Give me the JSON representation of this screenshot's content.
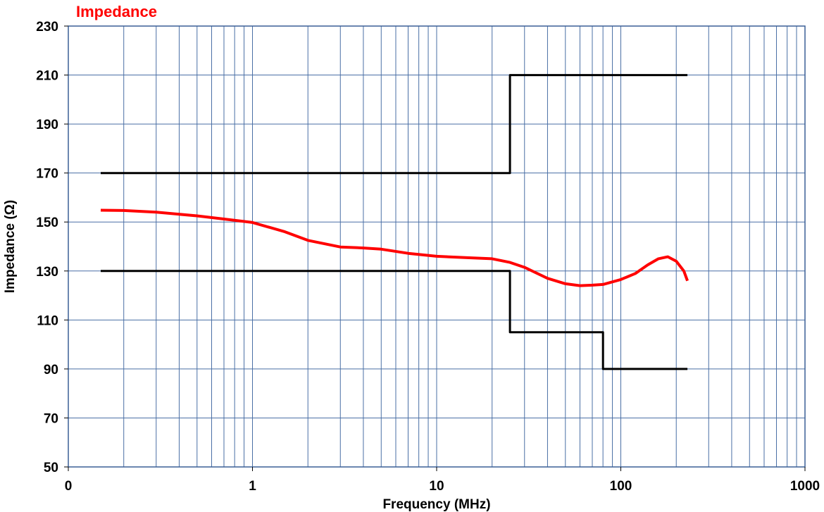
{
  "chart_data": {
    "type": "line",
    "title": "Impedance",
    "xlabel": "Frequency (MHz)",
    "ylabel": "Impedance (Ω)",
    "x_scale": "log",
    "xlim": [
      0.1,
      1000
    ],
    "ylim": [
      50,
      230
    ],
    "x_tick_labels": [
      "0",
      "1",
      "10",
      "100",
      "1000"
    ],
    "y_ticks": [
      50,
      70,
      90,
      110,
      130,
      150,
      170,
      190,
      210,
      230
    ],
    "y_tick_labels": [
      "50",
      "70",
      "90",
      "110",
      "130",
      "150",
      "170",
      "190",
      "210",
      "230"
    ],
    "grid": true,
    "colors": {
      "title": "#ff0000",
      "grid": "#4a6fa5",
      "limit_lines": "#000000",
      "measured": "#ff0000"
    },
    "series": [
      {
        "color": "#000000",
        "x": [
          0.15,
          25,
          25,
          230
        ],
        "y": [
          170,
          170,
          210,
          210
        ]
      },
      {
        "color": "#000000",
        "x": [
          0.15,
          25,
          25,
          80,
          80,
          230
        ],
        "y": [
          130,
          130,
          105,
          105,
          90,
          90
        ]
      },
      {
        "color": "#ff0000",
        "x": [
          0.15,
          0.2,
          0.3,
          0.5,
          0.7,
          1,
          1.5,
          2,
          3,
          4,
          5,
          7,
          10,
          15,
          20,
          25,
          30,
          40,
          50,
          60,
          70,
          80,
          100,
          120,
          140,
          160,
          180,
          200,
          220,
          230
        ],
        "y": [
          154.8,
          154.7,
          154.0,
          152.5,
          151.2,
          149.8,
          146.0,
          142.5,
          139.8,
          139.4,
          138.9,
          137.2,
          136.0,
          135.4,
          135.0,
          133.5,
          131.5,
          127.0,
          124.8,
          124.0,
          124.2,
          124.5,
          126.5,
          129.0,
          132.5,
          135.0,
          135.8,
          134.0,
          130.0,
          126.0
        ]
      }
    ]
  }
}
